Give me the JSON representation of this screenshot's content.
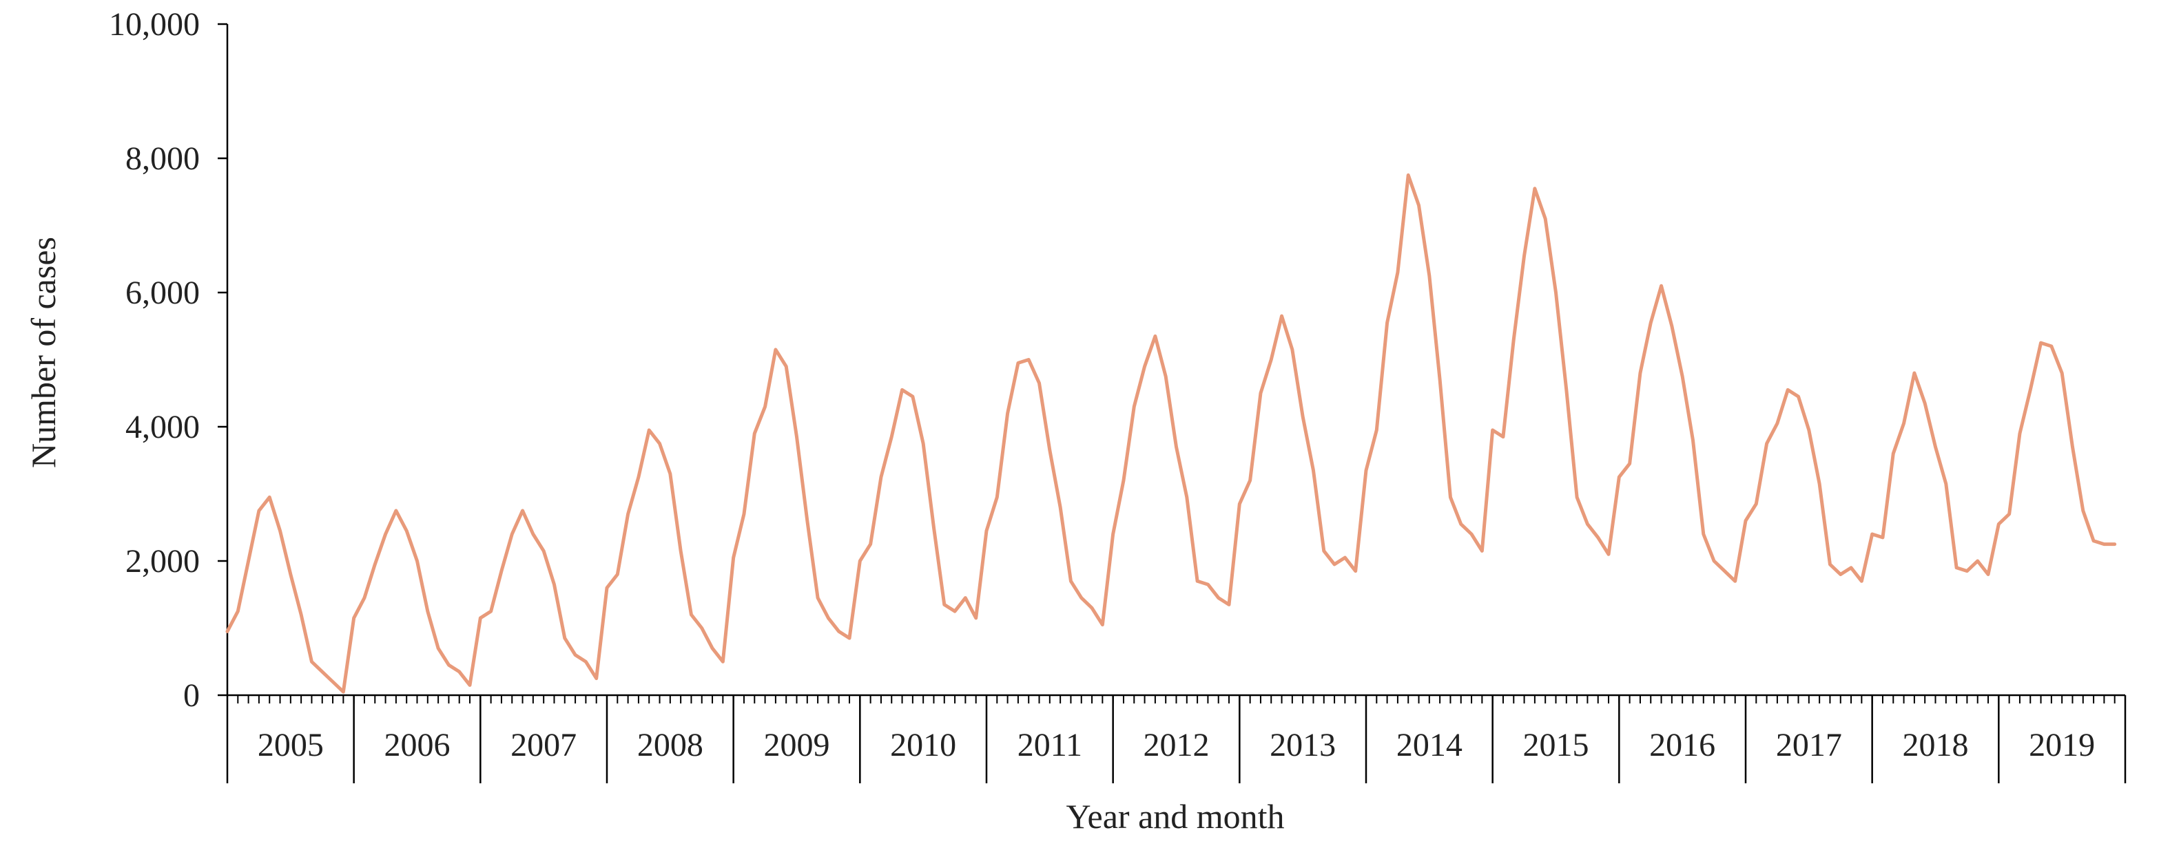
{
  "chart_data": {
    "type": "line",
    "title": "",
    "xlabel": "Year and month",
    "ylabel": "Number of cases",
    "ylim": [
      0,
      10000
    ],
    "yticks": [
      0,
      2000,
      4000,
      6000,
      8000,
      10000
    ],
    "ytick_labels": [
      "0",
      "2,000",
      "4,000",
      "6,000",
      "8,000",
      "10,000"
    ],
    "years": [
      "2005",
      "2006",
      "2007",
      "2008",
      "2009",
      "2010",
      "2011",
      "2012",
      "2013",
      "2014",
      "2015",
      "2016",
      "2017",
      "2018",
      "2019"
    ],
    "months_per_year": 12,
    "grid": false,
    "legend": "none",
    "line_color": "#E89A7A",
    "axis_color": "#000000",
    "series": [
      {
        "values": [
          950,
          1250,
          2000,
          2750,
          2950,
          2450,
          1800,
          1200,
          500,
          350,
          200,
          50,
          1150,
          1450,
          1950,
          2400,
          2750,
          2450,
          2000,
          1250,
          700,
          450,
          350,
          150,
          1150,
          1250,
          1850,
          2400,
          2750,
          2400,
          2150,
          1650,
          850,
          600,
          500,
          250,
          1600,
          1800,
          2700,
          3250,
          3950,
          3750,
          3300,
          2150,
          1200,
          1000,
          700,
          500,
          2050,
          2700,
          3900,
          4300,
          5150,
          4900,
          3850,
          2600,
          1450,
          1150,
          950,
          850,
          2000,
          2250,
          3250,
          3850,
          4550,
          4450,
          3750,
          2500,
          1350,
          1250,
          1450,
          1150,
          2450,
          2950,
          4200,
          4950,
          5000,
          4650,
          3650,
          2800,
          1700,
          1450,
          1300,
          1050,
          2400,
          3200,
          4300,
          4900,
          5350,
          4750,
          3700,
          2950,
          1700,
          1650,
          1450,
          1350,
          2850,
          3200,
          4500,
          5000,
          5650,
          5150,
          4150,
          3350,
          2150,
          1950,
          2050,
          1850,
          3350,
          3950,
          5550,
          6300,
          7750,
          7300,
          6250,
          4700,
          2950,
          2550,
          2400,
          2150,
          3950,
          3850,
          5300,
          6550,
          7550,
          7100,
          6000,
          4550,
          2950,
          2550,
          2350,
          2100,
          3250,
          3450,
          4800,
          5550,
          6100,
          5500,
          4750,
          3800,
          2400,
          2000,
          1850,
          1700,
          2600,
          2850,
          3750,
          4050,
          4550,
          4450,
          3950,
          3150,
          1950,
          1800,
          1900,
          1700,
          2400,
          2350,
          3600,
          4050,
          4800,
          4350,
          3700,
          3150,
          1900,
          1850,
          2000,
          1800,
          2550,
          2700,
          3900,
          4550,
          5250,
          5200,
          4800,
          3700,
          2750,
          2300,
          2250,
          2250
        ]
      }
    ]
  }
}
